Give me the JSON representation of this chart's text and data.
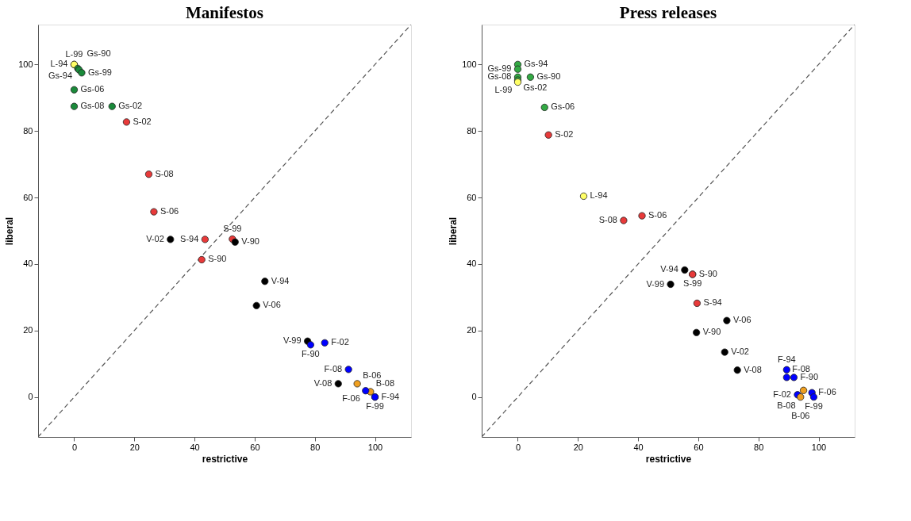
{
  "chart_data": [
    {
      "type": "scatter",
      "title": "Manifestos",
      "xlabel": "restrictive",
      "ylabel": "liberal",
      "xlim": [
        -12,
        112
      ],
      "ylim": [
        -12,
        112
      ],
      "xticks": [
        0,
        20,
        40,
        60,
        80,
        100
      ],
      "yticks": [
        0,
        20,
        40,
        60,
        80,
        100
      ],
      "grid": false,
      "marker": "circle",
      "series": [
        {
          "type": "line",
          "color": "#555555",
          "line_style": "dashed",
          "marker": "none",
          "x": [
            -12,
            112
          ],
          "values": [
            -12,
            112
          ]
        },
        {
          "color": "#ffff66",
          "x": [
            0,
            0
          ],
          "values": [
            100,
            100
          ],
          "value_labels": [
            "L-94",
            "L-99"
          ]
        },
        {
          "color": "#1a8a3a",
          "x": [
            1.2,
            1.6,
            2.5,
            0,
            0,
            12.6
          ],
          "values": [
            98.8,
            98.4,
            97.5,
            92.4,
            87.4,
            87.4
          ],
          "value_labels": [
            "Gs-94",
            "Gs-90",
            "Gs-99",
            "Gs-06",
            "Gs-08",
            "Gs-02"
          ]
        },
        {
          "color": "#e83a3a",
          "x": [
            17.4,
            24.8,
            26.5,
            43.5,
            42.4,
            52.6
          ],
          "values": [
            82.7,
            67.0,
            55.7,
            47.4,
            41.3,
            47.5
          ],
          "value_labels": [
            "S-02",
            "S-08",
            "S-06",
            "S-94",
            "S-90",
            "S-99"
          ]
        },
        {
          "color": "#000000",
          "x": [
            32.0,
            53.5,
            63.4,
            60.6,
            77.6,
            87.8
          ],
          "values": [
            47.4,
            46.6,
            34.8,
            27.5,
            16.8,
            4.0
          ],
          "value_labels": [
            "V-02",
            "V-90",
            "V-94",
            "V-06",
            "V-99",
            "V-08"
          ]
        },
        {
          "color": "#f0a020",
          "x": [
            94.1,
            98.5
          ],
          "values": [
            4.0,
            1.6
          ],
          "value_labels": [
            "B-06",
            "B-08"
          ]
        },
        {
          "color": "#0000ff",
          "x": [
            78.6,
            83.3,
            91.2,
            96.9,
            100,
            100
          ],
          "values": [
            15.7,
            16.3,
            8.3,
            1.9,
            0,
            0
          ],
          "value_labels": [
            "F-90",
            "F-02",
            "F-08",
            "F-06",
            "F-94",
            "F-99"
          ]
        }
      ]
    },
    {
      "type": "scatter",
      "title": "Press releases",
      "xlabel": "restrictive",
      "ylabel": "liberal",
      "xlim": [
        -12,
        112
      ],
      "ylim": [
        -12,
        112
      ],
      "xticks": [
        0,
        20,
        40,
        60,
        80,
        100
      ],
      "yticks": [
        0,
        20,
        40,
        60,
        80,
        100
      ],
      "grid": false,
      "marker": "circle",
      "series": [
        {
          "type": "line",
          "color": "#555555",
          "line_style": "dashed",
          "marker": "none",
          "x": [
            -12,
            112
          ],
          "values": [
            -12,
            112
          ]
        },
        {
          "color": "#33aa44",
          "x": [
            0,
            0,
            0,
            0,
            4.2,
            8.9
          ],
          "values": [
            100,
            98.6,
            96.2,
            95.3,
            96.2,
            87.1
          ],
          "value_labels": [
            "Gs-94",
            "Gs-99",
            "Gs-08",
            "Gs-02",
            "Gs-90",
            "Gs-06"
          ]
        },
        {
          "color": "#ffff66",
          "x": [
            0,
            21.9
          ],
          "values": [
            94.7,
            60.4
          ],
          "value_labels": [
            "L-99",
            "L-94"
          ]
        },
        {
          "color": "#e83a3a",
          "x": [
            10.2,
            35.2,
            41.3,
            58.1,
            58.1,
            59.6
          ],
          "values": [
            78.8,
            53.1,
            54.5,
            36.9,
            36.9,
            28.2
          ],
          "value_labels": [
            "S-02",
            "S-08",
            "S-06",
            "S-90",
            "S-99",
            "S-94"
          ]
        },
        {
          "color": "#000000",
          "x": [
            55.5,
            50.8,
            69.5,
            59.4,
            68.8,
            73.0
          ],
          "values": [
            38.2,
            33.9,
            23.0,
            19.4,
            13.5,
            8.1
          ],
          "value_labels": [
            "V-94",
            "V-99",
            "V-06",
            "V-90",
            "V-02",
            "V-08"
          ]
        },
        {
          "color": "#0000ff",
          "x": [
            89.4,
            89.4,
            91.8,
            93.0,
            97.8,
            98.4
          ],
          "values": [
            8.2,
            5.9,
            5.9,
            0.7,
            1.3,
            0
          ],
          "value_labels": [
            "F-94",
            "F-08",
            "F-90",
            "F-02",
            "F-06",
            "F-99"
          ]
        },
        {
          "color": "#f0a020",
          "x": [
            95.0,
            94.0
          ],
          "values": [
            2.0,
            0
          ],
          "value_labels": [
            "B-08",
            "B-06"
          ]
        }
      ]
    }
  ]
}
